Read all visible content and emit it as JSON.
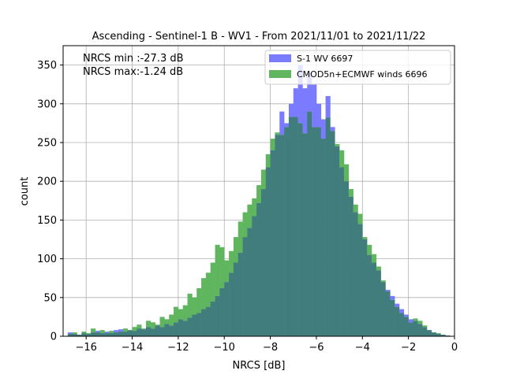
{
  "chart_data": {
    "type": "bar",
    "subtype": "overlaid-histogram",
    "title": "Ascending - Sentinel-1 B - WV1 - From 2021/11/01 to 2021/11/22",
    "xlabel": "NRCS [dB]",
    "ylabel": "count",
    "xlim": [
      -17,
      0
    ],
    "ylim": [
      0,
      375
    ],
    "xticks": [
      -16,
      -14,
      -12,
      -10,
      -8,
      -6,
      -4,
      -2,
      0
    ],
    "yticks": [
      0,
      50,
      100,
      150,
      200,
      250,
      300,
      350
    ],
    "xtick_labels": [
      "−16",
      "−14",
      "−12",
      "−10",
      "−8",
      "−6",
      "−4",
      "−2",
      "0"
    ],
    "ytick_labels": [
      "0",
      "50",
      "100",
      "150",
      "200",
      "250",
      "300",
      "350"
    ],
    "grid": true,
    "legend_position": "top-right",
    "annotations": [
      "NRCS min :-27.3 dB",
      "NRCS max:-1.24 dB"
    ],
    "bin_start": -16.8,
    "bin_width": 0.2,
    "series": [
      {
        "name": "S-1 WV 6697",
        "color": "#7b7bff",
        "values": [
          5,
          3,
          2,
          4,
          3,
          5,
          7,
          4,
          6,
          4,
          8,
          9,
          6,
          8,
          7,
          10,
          9,
          12,
          10,
          14,
          12,
          16,
          14,
          18,
          22,
          20,
          24,
          28,
          30,
          35,
          38,
          45,
          52,
          62,
          70,
          82,
          95,
          108,
          128,
          140,
          155,
          172,
          190,
          218,
          240,
          260,
          290,
          275,
          300,
          320,
          350,
          320,
          340,
          325,
          300,
          280,
          310,
          270,
          245,
          218,
          200,
          180,
          160,
          145,
          125,
          105,
          95,
          85,
          70,
          60,
          52,
          42,
          35,
          28,
          22,
          20,
          16,
          12,
          8,
          5,
          3,
          2,
          1
        ]
      },
      {
        "name": "CMOD5n+ECMWF winds 6696",
        "color": "#5fb65f",
        "values": [
          3,
          5,
          2,
          6,
          4,
          10,
          5,
          8,
          4,
          7,
          5,
          6,
          10,
          8,
          12,
          15,
          10,
          20,
          18,
          15,
          25,
          22,
          28,
          38,
          35,
          40,
          55,
          50,
          62,
          75,
          82,
          95,
          118,
          115,
          98,
          110,
          128,
          148,
          160,
          170,
          178,
          195,
          215,
          235,
          255,
          263,
          260,
          270,
          283,
          283,
          275,
          262,
          290,
          270,
          270,
          255,
          282,
          265,
          248,
          240,
          222,
          190,
          170,
          158,
          128,
          118,
          106,
          90,
          72,
          58,
          47,
          38,
          30,
          25,
          18,
          23,
          20,
          14,
          8,
          5,
          4,
          2,
          1
        ]
      }
    ],
    "overlap_color": "#417d7d"
  }
}
